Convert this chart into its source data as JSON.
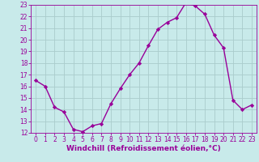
{
  "x": [
    0,
    1,
    2,
    3,
    4,
    5,
    6,
    7,
    8,
    9,
    10,
    11,
    12,
    13,
    14,
    15,
    16,
    17,
    18,
    19,
    20,
    21,
    22,
    23
  ],
  "y": [
    16.5,
    16.0,
    14.2,
    13.8,
    12.3,
    12.1,
    12.6,
    12.8,
    14.5,
    15.8,
    17.0,
    18.0,
    19.5,
    20.9,
    21.5,
    21.9,
    23.2,
    22.9,
    22.2,
    20.4,
    19.3,
    14.8,
    14.0,
    14.4
  ],
  "line_color": "#990099",
  "marker": "D",
  "marker_size": 2.2,
  "bg_color": "#c8eaea",
  "grid_color": "#aacccc",
  "xlabel": "Windchill (Refroidissement éolien,°C)",
  "xlabel_color": "#990099",
  "tick_color": "#990099",
  "ylim": [
    12,
    23
  ],
  "xlim": [
    -0.5,
    23.5
  ],
  "yticks": [
    12,
    13,
    14,
    15,
    16,
    17,
    18,
    19,
    20,
    21,
    22,
    23
  ],
  "xticks": [
    0,
    1,
    2,
    3,
    4,
    5,
    6,
    7,
    8,
    9,
    10,
    11,
    12,
    13,
    14,
    15,
    16,
    17,
    18,
    19,
    20,
    21,
    22,
    23
  ],
  "tick_fontsize": 5.5,
  "xlabel_fontsize": 6.5,
  "line_width": 1.0
}
